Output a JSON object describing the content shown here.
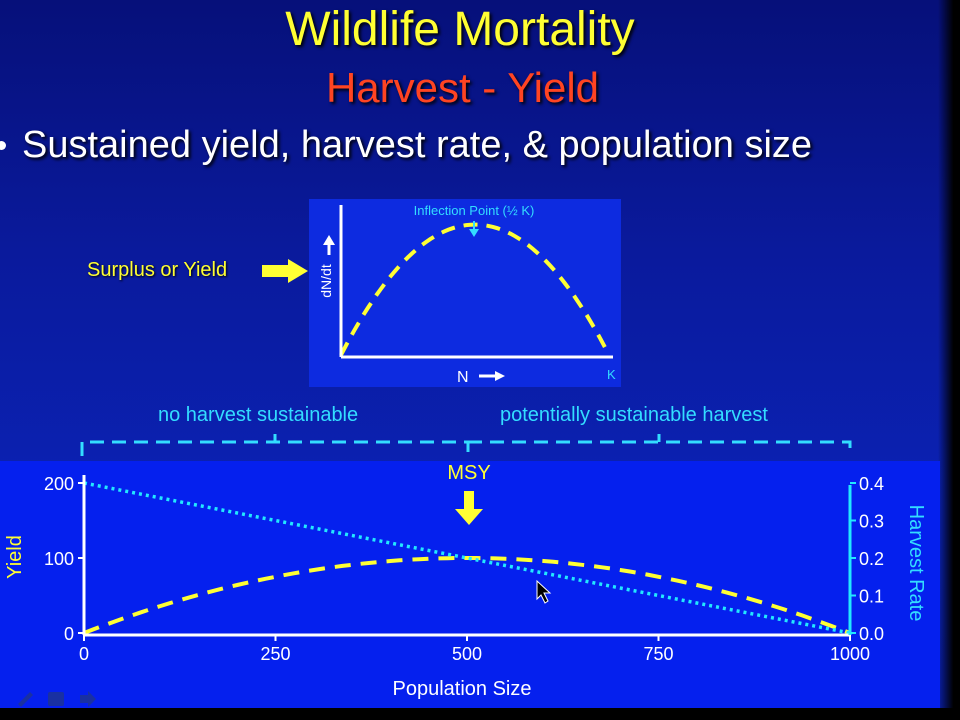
{
  "slide": {
    "title": "Wildlife Mortality",
    "subtitle": "Harvest - Yield",
    "bullet": "Sustained yield, harvest rate, & population size",
    "callout_label": "Surplus or Yield"
  },
  "inset": {
    "annotation": "Inflection Point (½ K)",
    "ylabel": "dN/dt",
    "xlabel": "N",
    "k_label": "K"
  },
  "ranges": {
    "left_label": "no harvest sustainable",
    "right_label": "potentially sustainable harvest"
  },
  "colors": {
    "yield": "#ffff33",
    "harvest_rate": "#22e8ff",
    "axis_white": "#ffffff",
    "cyan_text": "#33ddff"
  },
  "chart_data": [
    {
      "type": "line",
      "ylabel": "dN/dt",
      "xlabel": "N",
      "annotations": [
        {
          "text": "Inflection Point (½ K)",
          "x": 0.5
        }
      ],
      "x": [
        0,
        0.1,
        0.2,
        0.3,
        0.4,
        0.5,
        0.6,
        0.7,
        0.8,
        0.9,
        1.0
      ],
      "series": [
        {
          "values": [
            0,
            0.36,
            0.64,
            0.84,
            0.96,
            1.0,
            0.96,
            0.84,
            0.64,
            0.36,
            0
          ]
        }
      ],
      "xlim": [
        0,
        1
      ],
      "ylim": [
        0,
        1.15
      ]
    },
    {
      "type": "line",
      "xlabel": "Population Size",
      "ylabel": "Yield",
      "y2label": "Harvest Rate",
      "xticks": [
        "0",
        "250",
        "500",
        "750",
        "1000"
      ],
      "yticks": [
        "0",
        "100",
        "200"
      ],
      "y2ticks": [
        "0.0",
        "0.1",
        "0.2",
        "0.3",
        "0.4"
      ],
      "xlim": [
        0,
        1000
      ],
      "ylim": [
        0,
        200
      ],
      "y2lim": [
        0,
        0.4
      ],
      "annotations": [
        {
          "text": "MSY",
          "x": 500
        }
      ],
      "x": [
        0,
        100,
        200,
        300,
        400,
        500,
        600,
        700,
        800,
        900,
        1000
      ],
      "series": [
        {
          "name": "Yield",
          "axis": "left",
          "values": [
            0,
            36,
            64,
            84,
            96,
            100,
            96,
            84,
            64,
            36,
            0
          ]
        },
        {
          "name": "Harvest Rate",
          "axis": "right",
          "values": [
            0.4,
            0.36,
            0.32,
            0.28,
            0.24,
            0.2,
            0.16,
            0.12,
            0.08,
            0.04,
            0.0
          ]
        }
      ],
      "grid": false
    }
  ]
}
